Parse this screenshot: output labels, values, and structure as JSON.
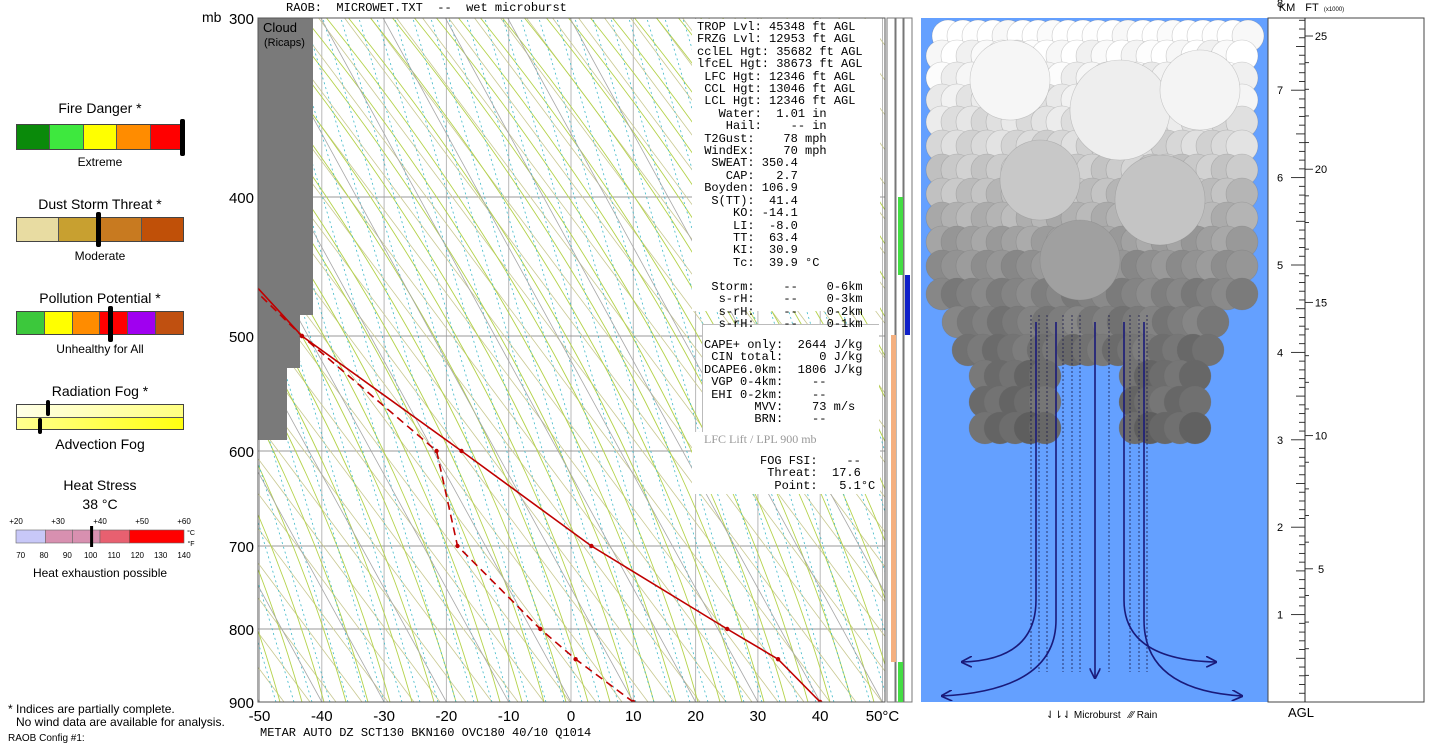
{
  "header": {
    "raob_label": "RAOB:",
    "filename": "MICROWET.TXT",
    "separator": "--",
    "description": "wet microburst"
  },
  "left_panel": {
    "fire": {
      "title": "Fire Danger *",
      "level": "Extreme",
      "level_fraction": 0.99,
      "colors": [
        "#0a8a0a",
        "#3ee83e",
        "#ffff00",
        "#ff8c00",
        "#ff0000"
      ]
    },
    "dust": {
      "title": "Dust Storm Threat *",
      "level": "Moderate",
      "level_fraction": 0.49,
      "colors": [
        "#e8dca2",
        "#c8a030",
        "#c87a20",
        "#c05008"
      ]
    },
    "pollution": {
      "title": "Pollution Potential *",
      "level": "Unhealthy for All",
      "level_fraction": 0.56,
      "colors": [
        "#3cc83c",
        "#ffff00",
        "#ff8c00",
        "#ff0000",
        "#a000f0",
        "#c05010"
      ]
    },
    "fog": {
      "title": "Radiation Fog *",
      "level": "Advection Fog",
      "radiation_fraction": 0.19,
      "advection_fraction": 0.14,
      "colors": [
        "#ffffc8",
        "#ffff30"
      ]
    },
    "heat": {
      "title": "Heat Stress",
      "value": "38 °C",
      "note": "Heat exhaustion possible",
      "c_ticks": [
        "+20",
        "+30",
        "+40",
        "+50",
        "+60"
      ],
      "c_unit": "°C",
      "f_ticks": [
        "70",
        "80",
        "90",
        "100",
        "110",
        "120",
        "130",
        "140"
      ],
      "f_unit": "°F",
      "marker_c": 38,
      "colors": [
        "#c8c8f8",
        "#d890b0",
        "#e86070",
        "#ff0000"
      ]
    },
    "footnote_1": "* Indices are partially complete.",
    "footnote_2": "No wind data are available for analysis.",
    "config": "RAOB Config #1:"
  },
  "skewt": {
    "mb_label": "mb",
    "pressure_labels": [
      "300",
      "400",
      "500",
      "600",
      "700",
      "800",
      "900"
    ],
    "temp_labels": [
      "-50",
      "-40",
      "-30",
      "-20",
      "-10",
      "0",
      "10",
      "20",
      "30",
      "40",
      "50°C"
    ],
    "cloud_label": "Cloud",
    "cloud_sub": "(Ricaps)",
    "metar": "METAR AUTO DZ SCT130 BKN160 OVC180 40/10 Q1014"
  },
  "chart_data": {
    "type": "line",
    "title": "MICROWET.TXT -- wet microburst",
    "xlabel": "°C",
    "ylabel": "mb",
    "ylim": [
      300,
      900
    ],
    "xlim": [
      -50,
      50
    ],
    "grid": true,
    "series": [
      {
        "name": "Temperature",
        "color": "#c00000",
        "style": "solid",
        "points": [
          [
            -43,
            300
          ],
          [
            -23.5,
            400
          ],
          [
            -14.5,
            455
          ],
          [
            -11,
            500
          ],
          [
            4.5,
            600
          ],
          [
            17,
            700
          ],
          [
            31.5,
            800
          ],
          [
            37,
            840
          ],
          [
            40,
            900
          ]
        ]
      },
      {
        "name": "Dewpoint",
        "color": "#c00000",
        "style": "dashed",
        "points": [
          [
            -41,
            310
          ],
          [
            -23.5,
            400
          ],
          [
            -15.5,
            455
          ],
          [
            -11,
            500
          ],
          [
            0.5,
            600
          ],
          [
            -4.5,
            700
          ],
          [
            1.5,
            800
          ],
          [
            4.5,
            840
          ],
          [
            10,
            900
          ]
        ]
      }
    ]
  },
  "indices": {
    "lines": [
      "TROP Lvl: 45348 ft AGL",
      "FRZG Lvl: 12953 ft AGL",
      "cclEL Hgt: 35682 ft AGL",
      "lfcEL Hgt: 38673 ft AGL",
      " LFC Hgt: 12346 ft AGL",
      " CCL Hgt: 13046 ft AGL",
      " LCL Hgt: 12346 ft AGL",
      "   Water:  1.01 in",
      "    Hail:    -- in",
      " T2Gust:    78 mph",
      " WindEx:    70 mph",
      "  SWEAT: 350.4",
      "    CAP:   2.7",
      " Boyden: 106.9",
      "  S(TT):  41.4",
      "     KO: -14.1",
      "     LI:  -8.0",
      "     TT:  63.4",
      "     KI:  30.9",
      "     Tc:  39.9 °C"
    ],
    "storm_lines": [
      "  Storm:    --    0-6km",
      "   s-rH:    --    0-3km",
      "   s-rH:    --    0-2km",
      "   s-rH:    --    0-1km"
    ],
    "cape_lines": [
      "CAPE+ only:  2644 J/kg",
      " CIN total:     0 J/kg",
      "DCAPE6.0km:  1806 J/kg",
      " VGP 0-4km:    --",
      " EHI 0-2km:    --",
      "       MVV:    73 m/s",
      "       BRN:    --"
    ],
    "lfc_lift": "LFC Lift / LPL 900 mb",
    "fog_lines": [
      "FOG FSI:    --",
      " Threat:  17.6",
      "  Point:   5.1°C"
    ]
  },
  "right_panel": {
    "km_label": "KM",
    "ft_label": "FT",
    "ft_sub": "(x1000)",
    "km_ticks": [
      "1",
      "2",
      "3",
      "4",
      "5",
      "6",
      "7",
      "8"
    ],
    "ft_ticks": [
      "5",
      "10",
      "15",
      "20",
      "25"
    ],
    "agl_label": "AGL",
    "legend_microburst": "Microburst",
    "legend_rain": "Rain",
    "sky_color": "#64a0ff"
  }
}
